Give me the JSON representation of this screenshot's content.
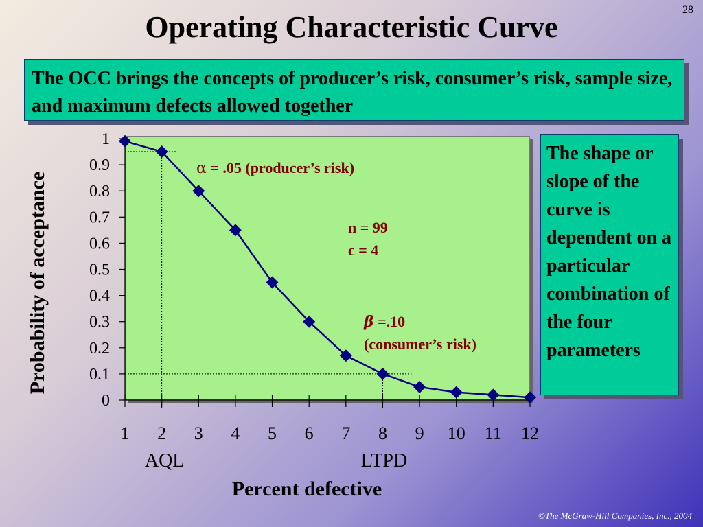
{
  "page_number": "28",
  "title": "Operating Characteristic Curve",
  "intro_text": "The OCC brings the concepts of producer’s risk, consumer’s risk, sample size, and maximum defects allowed together",
  "side_text": "The shape or slope of the curve is dependent on a particular combination of the four parameters",
  "footer": "©The McGraw-Hill Companies, Inc., 2004",
  "colors": {
    "curve": "#000080",
    "plot_background": "#a8f08c",
    "box_fill": "#00cc99",
    "annotation": "#800000"
  },
  "chart_data": {
    "type": "line",
    "xlabel": "Percent defective",
    "ylabel": "Probability of acceptance",
    "x": [
      1,
      2,
      3,
      4,
      5,
      6,
      7,
      8,
      9,
      10,
      11,
      12
    ],
    "series": [
      {
        "values": [
          0.99,
          0.95,
          0.8,
          0.65,
          0.45,
          0.3,
          0.17,
          0.1,
          0.05,
          0.03,
          0.02,
          0.01
        ]
      }
    ],
    "xlim": [
      1,
      12
    ],
    "ylim": [
      0,
      1
    ],
    "y_ticks": [
      "0",
      "0.1",
      "0.2",
      "0.3",
      "0.4",
      "0.5",
      "0.6",
      "0.7",
      "0.8",
      "0.9",
      "1"
    ],
    "x_ticks": [
      "1",
      "2",
      "3",
      "4",
      "5",
      "6",
      "7",
      "8",
      "9",
      "10",
      "11",
      "12"
    ],
    "marker": "diamond",
    "grid": false,
    "reference_lines": [
      {
        "x": 2,
        "y": 0.95,
        "label": "AQL"
      },
      {
        "x": 8,
        "y": 0.1,
        "label": "LTPD"
      }
    ],
    "annotations": [
      {
        "symbol": "α",
        "text": " = .05 (producer’s risk)"
      },
      {
        "line1": "n = 99",
        "line2": "c = 4"
      },
      {
        "symbol": "β",
        "line1": " =.10",
        "line2": "(consumer’s risk)"
      }
    ]
  }
}
